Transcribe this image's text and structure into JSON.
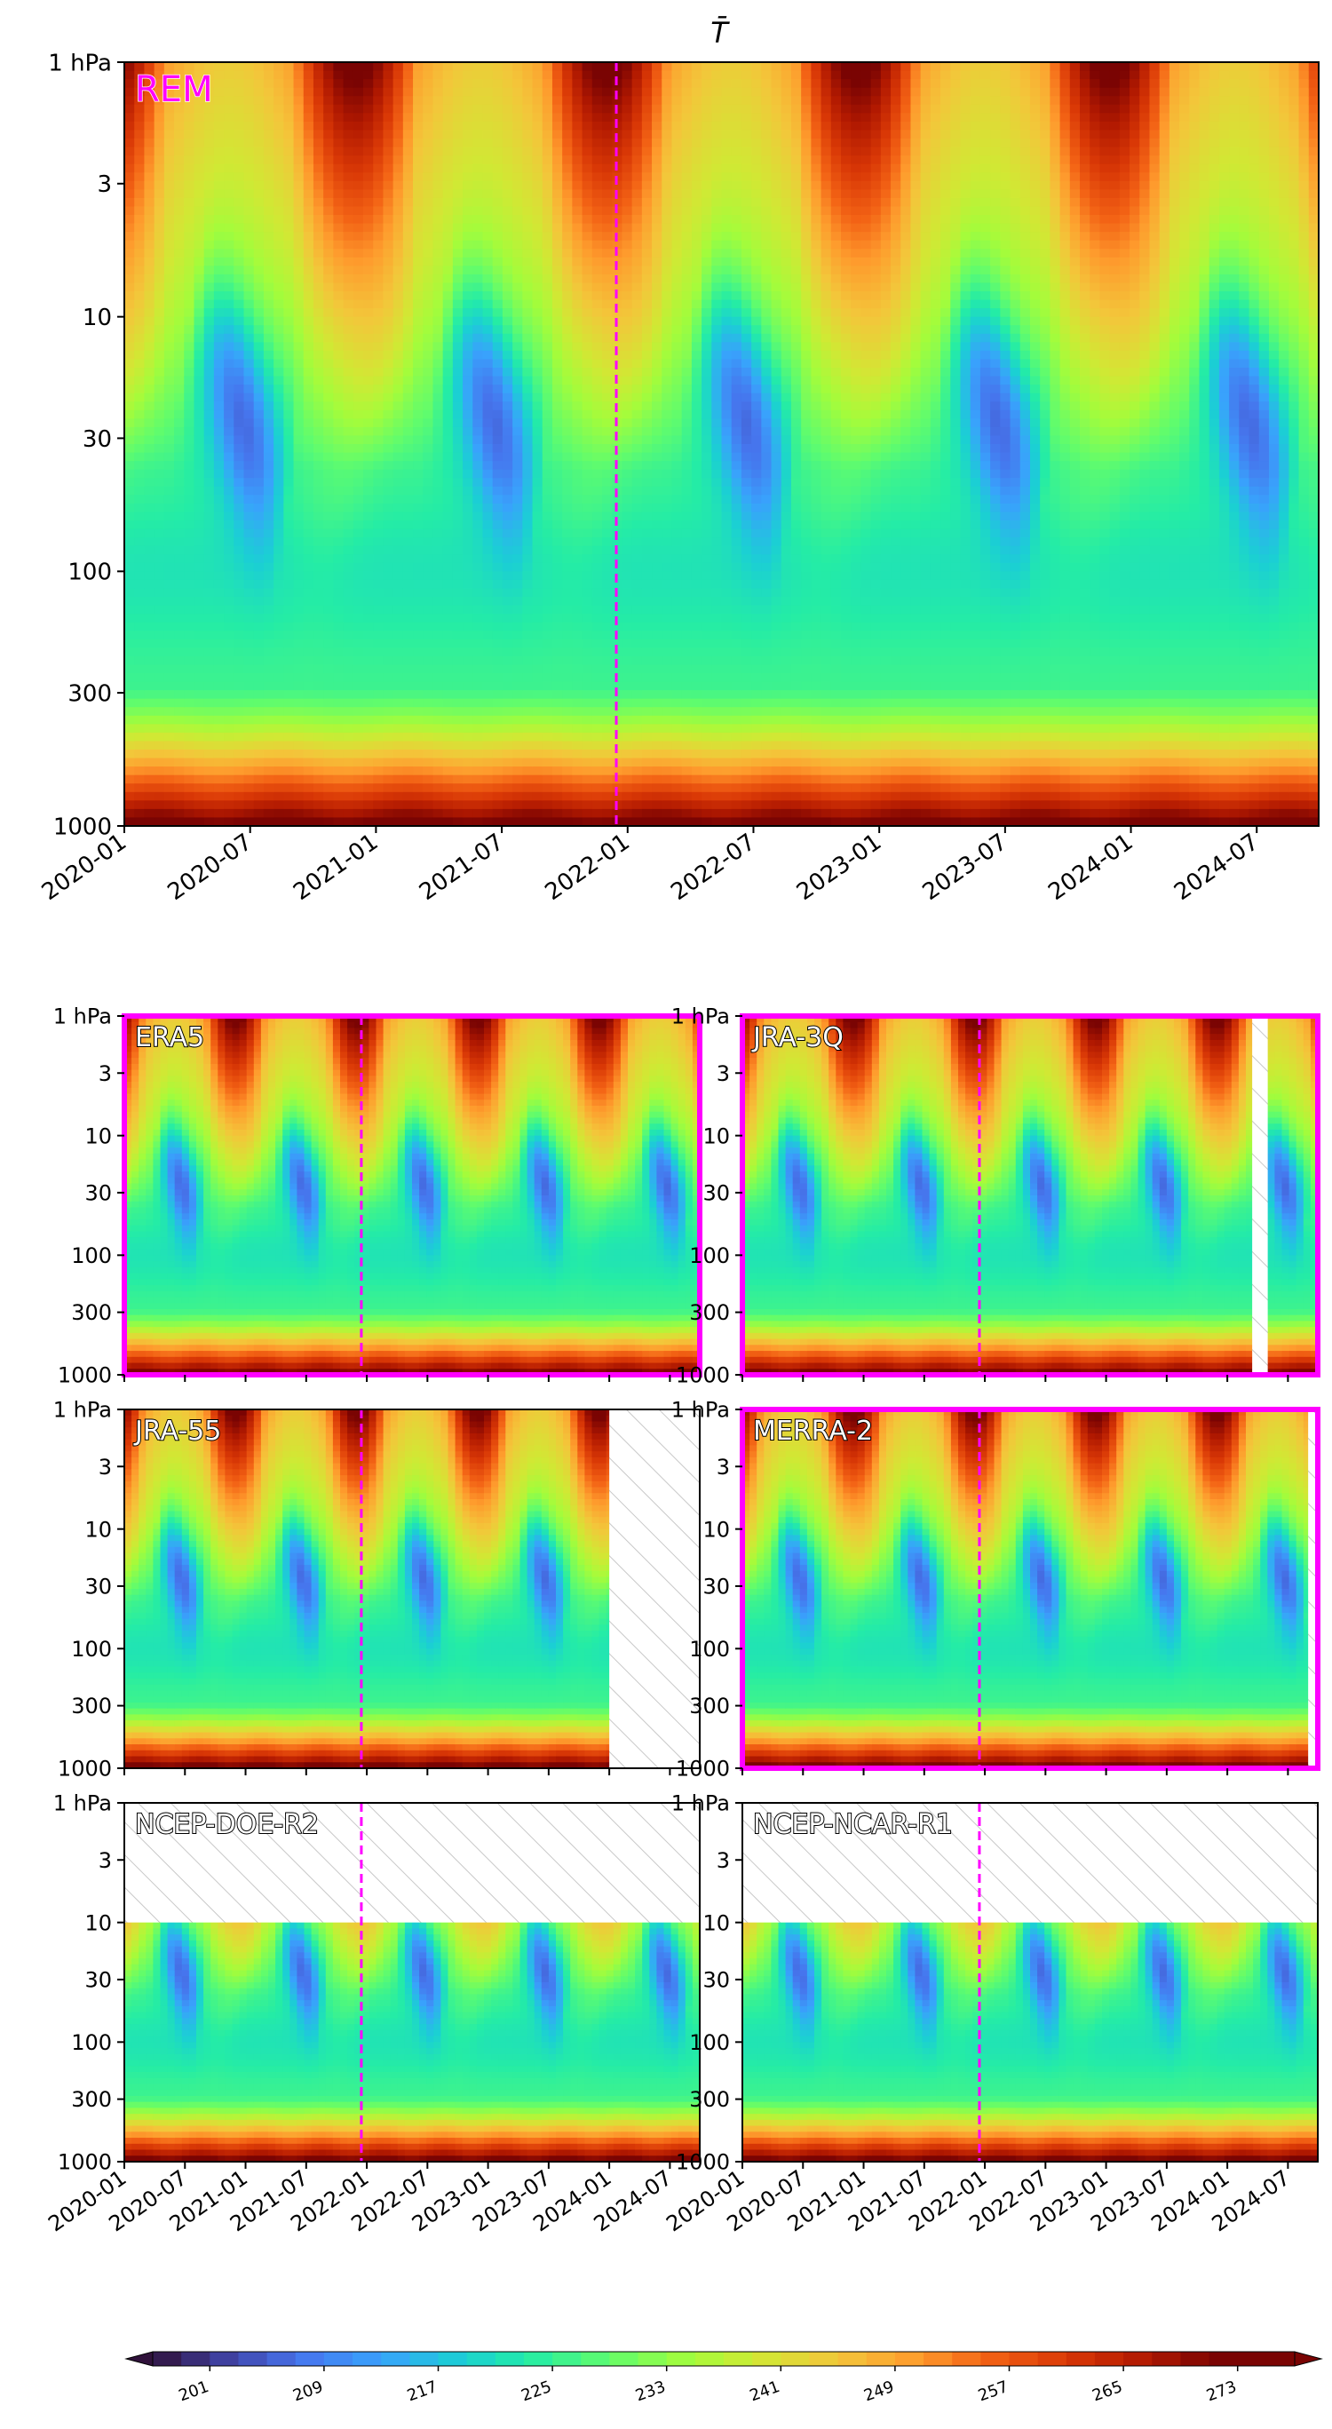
{
  "chart_data": {
    "type": "heatmap",
    "title": "T̄",
    "variable": "zonal-mean temperature",
    "time_ticks": [
      "2020-01",
      "2020-07",
      "2021-01",
      "2021-07",
      "2022-01",
      "2022-07",
      "2023-01",
      "2023-07",
      "2024-01",
      "2024-07"
    ],
    "pressure_ticks": [
      "1 hPa",
      "3",
      "10",
      "30",
      "100",
      "300",
      "1000"
    ],
    "y_scale": "log",
    "ylim_hPa": [
      1000,
      1
    ],
    "xlim": [
      "2020-01-01",
      "2024-09-30"
    ],
    "marker_date": "2021-12-15",
    "marker_color": "#ff00ff",
    "colormap": "turbo",
    "colorbar": {
      "ticks": [
        "201",
        "209",
        "217",
        "225",
        "233",
        "241",
        "249",
        "257",
        "265",
        "273"
      ],
      "range": [
        197,
        277
      ],
      "extend": "both"
    },
    "cold_cores": [
      {
        "date": "2020-06-15",
        "value": 201
      },
      {
        "date": "2021-06-15",
        "value": 200
      },
      {
        "date": "2022-06-01",
        "value": 199
      },
      {
        "date": "2023-06-15",
        "value": 202
      },
      {
        "date": "2024-06-15",
        "value": 203
      }
    ],
    "warm_peaks_1hPa": [
      {
        "date": "2020-12-01",
        "value": 275
      },
      {
        "date": "2021-12-01",
        "value": 274
      },
      {
        "date": "2022-12-01",
        "value": 276
      },
      {
        "date": "2023-12-01",
        "value": 275
      }
    ],
    "panels": [
      {
        "name": "REM",
        "label_color": "#ff00ff",
        "highlight": false,
        "missing": []
      },
      {
        "name": "ERA5",
        "label_color": "#ffffff",
        "highlight": true,
        "missing": []
      },
      {
        "name": "JRA-3Q",
        "label_color": "#ffffff",
        "highlight": true,
        "missing": [
          {
            "from": "2024-03-15",
            "to": "2024-05-01",
            "p_top": 1,
            "p_bottom": 1000
          }
        ]
      },
      {
        "name": "JRA-55",
        "label_color": "#ffffff",
        "highlight": false,
        "missing": [
          {
            "from": "2024-01-01",
            "to": "2024-09-30",
            "p_top": 1,
            "p_bottom": 1000
          }
        ]
      },
      {
        "name": "MERRA-2",
        "label_color": "#ffffff",
        "highlight": true,
        "missing": [
          {
            "from": "2024-09-01",
            "to": "2024-09-30",
            "p_top": 1,
            "p_bottom": 1000
          }
        ]
      },
      {
        "name": "NCEP-DOE-R2",
        "label_color": "#ffffff",
        "highlight": false,
        "missing": [
          {
            "from": "2020-01-01",
            "to": "2024-09-30",
            "p_top": 1,
            "p_bottom": 10
          }
        ]
      },
      {
        "name": "NCEP-NCAR-R1",
        "label_color": "#ffffff",
        "highlight": false,
        "missing": [
          {
            "from": "2020-01-01",
            "to": "2024-09-30",
            "p_top": 1,
            "p_bottom": 10
          }
        ]
      }
    ]
  }
}
